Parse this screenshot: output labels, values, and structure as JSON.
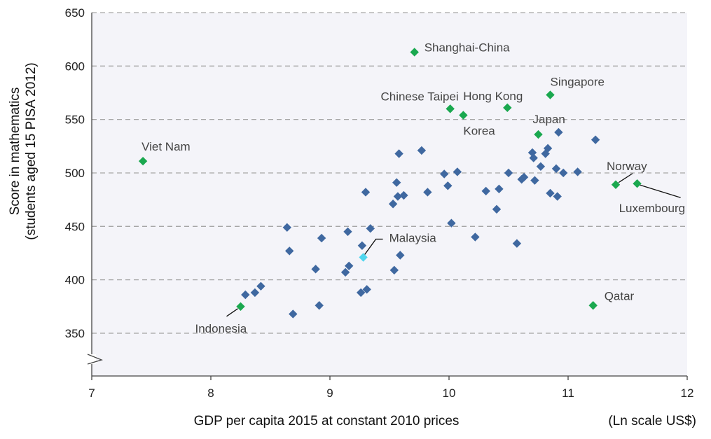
{
  "chart_data": {
    "type": "scatter",
    "xlabel": "GDP per capita 2015 at constant 2010 prices",
    "ylabel_lines": [
      "Score in mathematics",
      "(students aged 15 PISA 2012)"
    ],
    "x_unit_note": "(Ln scale US$)",
    "xlim": [
      7,
      12
    ],
    "ylim": [
      310,
      650
    ],
    "x_ticks": [
      "7",
      "8",
      "9",
      "10",
      "11",
      "12"
    ],
    "y_ticks": [
      "350",
      "400",
      "450",
      "500",
      "550",
      "600",
      "650"
    ],
    "axis_break": true,
    "grid": "horizontal dashed",
    "colors": {
      "plot_bg": "#f4f4f9",
      "default": "#3f68a0",
      "highlight": "#1aa84f",
      "malaysia": "#4fd6ee",
      "grid": "#a6a6a6"
    },
    "highlighted": [
      {
        "label": "Viet Nam",
        "x": 7.43,
        "y": 511
      },
      {
        "label": "Shanghai-China",
        "x": 9.71,
        "y": 613
      },
      {
        "label": "Chinese Taipei",
        "x": 10.01,
        "y": 560
      },
      {
        "label": "Korea",
        "x": 10.12,
        "y": 554
      },
      {
        "label": "Hong Kong",
        "x": 10.49,
        "y": 561
      },
      {
        "label": "Singapore",
        "x": 10.85,
        "y": 573
      },
      {
        "label": "Japan",
        "x": 10.75,
        "y": 536
      },
      {
        "label": "Norway",
        "x": 11.4,
        "y": 489
      },
      {
        "label": "Luxembourg",
        "x": 11.58,
        "y": 490
      },
      {
        "label": "Qatar",
        "x": 11.21,
        "y": 376
      },
      {
        "label": "Indonesia",
        "x": 8.25,
        "y": 375
      }
    ],
    "malaysia": {
      "label": "Malaysia",
      "x": 9.28,
      "y": 421
    },
    "points": [
      {
        "x": 8.29,
        "y": 386
      },
      {
        "x": 8.37,
        "y": 388
      },
      {
        "x": 8.42,
        "y": 394
      },
      {
        "x": 8.64,
        "y": 449
      },
      {
        "x": 8.66,
        "y": 427
      },
      {
        "x": 8.69,
        "y": 368
      },
      {
        "x": 8.88,
        "y": 410
      },
      {
        "x": 8.91,
        "y": 376
      },
      {
        "x": 8.93,
        "y": 439
      },
      {
        "x": 9.13,
        "y": 407
      },
      {
        "x": 9.15,
        "y": 445
      },
      {
        "x": 9.16,
        "y": 413
      },
      {
        "x": 9.26,
        "y": 388
      },
      {
        "x": 9.27,
        "y": 432
      },
      {
        "x": 9.3,
        "y": 482
      },
      {
        "x": 9.31,
        "y": 391
      },
      {
        "x": 9.34,
        "y": 448
      },
      {
        "x": 9.53,
        "y": 471
      },
      {
        "x": 9.54,
        "y": 409
      },
      {
        "x": 9.56,
        "y": 491
      },
      {
        "x": 9.57,
        "y": 478
      },
      {
        "x": 9.58,
        "y": 518
      },
      {
        "x": 9.59,
        "y": 423
      },
      {
        "x": 9.62,
        "y": 479
      },
      {
        "x": 9.77,
        "y": 521
      },
      {
        "x": 9.82,
        "y": 482
      },
      {
        "x": 9.96,
        "y": 499
      },
      {
        "x": 9.99,
        "y": 488
      },
      {
        "x": 10.02,
        "y": 453
      },
      {
        "x": 10.07,
        "y": 501
      },
      {
        "x": 10.22,
        "y": 440
      },
      {
        "x": 10.31,
        "y": 483
      },
      {
        "x": 10.4,
        "y": 466
      },
      {
        "x": 10.42,
        "y": 485
      },
      {
        "x": 10.5,
        "y": 500
      },
      {
        "x": 10.57,
        "y": 434
      },
      {
        "x": 10.61,
        "y": 494
      },
      {
        "x": 10.63,
        "y": 496
      },
      {
        "x": 10.7,
        "y": 519
      },
      {
        "x": 10.71,
        "y": 514
      },
      {
        "x": 10.72,
        "y": 493
      },
      {
        "x": 10.77,
        "y": 506
      },
      {
        "x": 10.81,
        "y": 518
      },
      {
        "x": 10.83,
        "y": 523
      },
      {
        "x": 10.85,
        "y": 481
      },
      {
        "x": 10.9,
        "y": 504
      },
      {
        "x": 10.91,
        "y": 478
      },
      {
        "x": 10.92,
        "y": 538
      },
      {
        "x": 10.96,
        "y": 500
      },
      {
        "x": 11.08,
        "y": 501
      },
      {
        "x": 11.23,
        "y": 531
      }
    ]
  }
}
